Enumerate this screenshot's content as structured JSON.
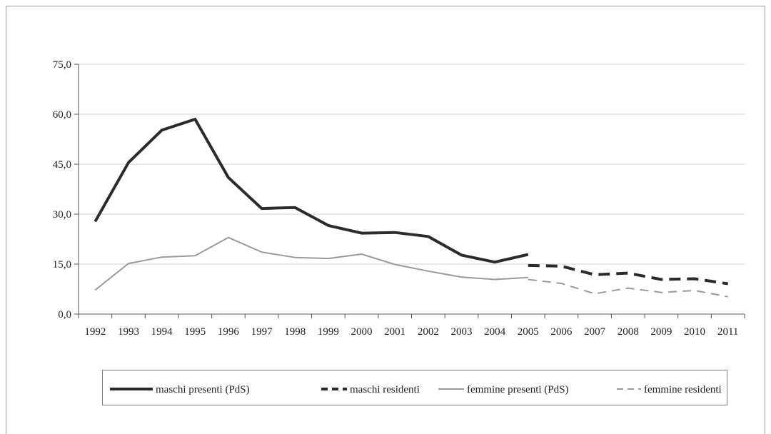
{
  "chart_data": {
    "type": "line",
    "title": "",
    "xlabel": "",
    "ylabel": "",
    "ylim": [
      0,
      75
    ],
    "yticks": [
      "0,0",
      "15,0",
      "30,0",
      "45,0",
      "60,0",
      "75,0"
    ],
    "ytick_values": [
      0,
      15,
      30,
      45,
      60,
      75
    ],
    "categories": [
      "1992",
      "1993",
      "1994",
      "1995",
      "1996",
      "1997",
      "1998",
      "1999",
      "2000",
      "2001",
      "2002",
      "2003",
      "2004",
      "2005",
      "2006",
      "2007",
      "2008",
      "2009",
      "2010",
      "2011"
    ],
    "grid": "horizontal",
    "legend_position": "bottom",
    "series": [
      {
        "name": "maschi presenti (PdS)",
        "style": "solid",
        "weight": "thick",
        "color": "#2b2b2b",
        "values": [
          27.8,
          45.5,
          55.2,
          58.5,
          41.0,
          31.7,
          32.0,
          26.6,
          24.3,
          24.5,
          23.3,
          17.7,
          15.6,
          17.9,
          null,
          null,
          null,
          null,
          null,
          null
        ]
      },
      {
        "name": "maschi residenti",
        "style": "dashed",
        "weight": "thick",
        "color": "#2b2b2b",
        "values": [
          null,
          null,
          null,
          null,
          null,
          null,
          null,
          null,
          null,
          null,
          null,
          null,
          null,
          14.6,
          14.4,
          11.8,
          12.3,
          10.4,
          10.6,
          9.1
        ]
      },
      {
        "name": "femmine presenti (PdS)",
        "style": "solid",
        "weight": "thin",
        "color": "#9a9a9a",
        "values": [
          7.2,
          15.2,
          17.1,
          17.5,
          23.0,
          18.6,
          17.0,
          16.7,
          18.0,
          14.9,
          12.9,
          11.1,
          10.4,
          11.0,
          null,
          null,
          null,
          null,
          null,
          null
        ]
      },
      {
        "name": "femmine residenti",
        "style": "dashed",
        "weight": "thin",
        "color": "#9a9a9a",
        "values": [
          null,
          null,
          null,
          null,
          null,
          null,
          null,
          null,
          null,
          null,
          null,
          null,
          null,
          10.4,
          9.2,
          6.1,
          7.8,
          6.5,
          7.1,
          5.2
        ]
      }
    ]
  }
}
